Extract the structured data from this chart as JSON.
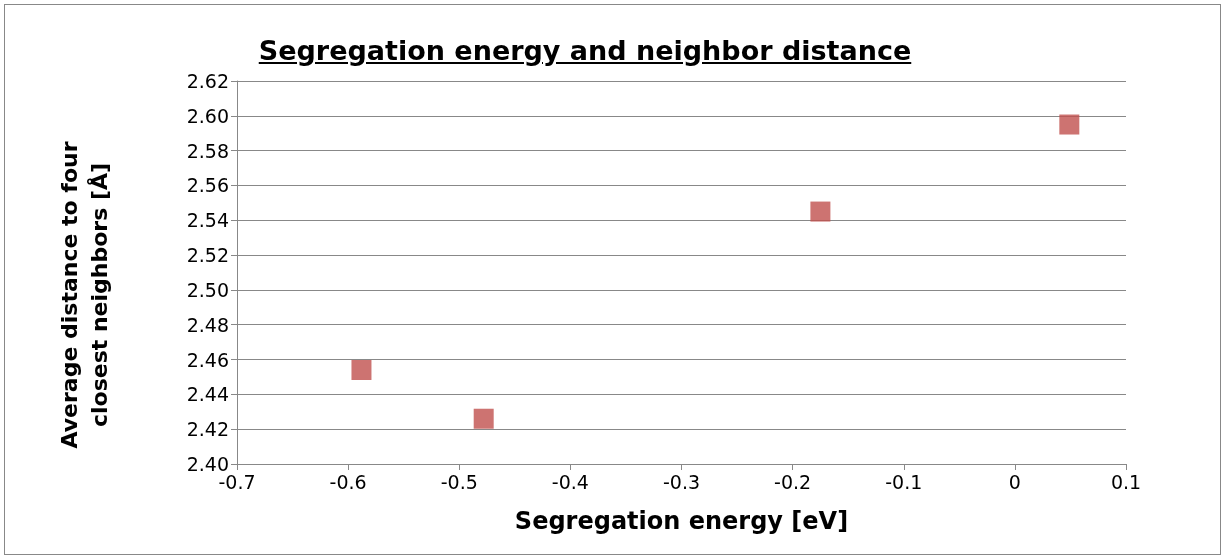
{
  "chart_data": {
    "type": "scatter",
    "title": "Segregation energy and neighbor distance",
    "xlabel": "Segregation energy [eV]",
    "ylabel": "Average distance to four closest neighbors [Å]",
    "x": [
      -0.588,
      -0.478,
      -0.175,
      0.049
    ],
    "series": [
      {
        "color": "#c0504d",
        "values": [
          2.454,
          2.426,
          2.545,
          2.595
        ]
      }
    ],
    "xlim": [
      -0.7,
      0.1
    ],
    "xticks": [
      -0.7,
      -0.6,
      -0.5,
      -0.4,
      -0.3,
      -0.2,
      -0.1,
      0,
      0.1
    ],
    "ylim": [
      2.4,
      2.62
    ],
    "yticks": [
      {
        "value": 2.4,
        "label": "2.40"
      },
      {
        "value": 2.42,
        "label": "2.42"
      },
      {
        "value": 2.44,
        "label": "2.44"
      },
      {
        "value": 2.46,
        "label": "2.46"
      },
      {
        "value": 2.48,
        "label": "2.48"
      },
      {
        "value": 2.5,
        "label": "2.50"
      },
      {
        "value": 2.52,
        "label": "2.52"
      },
      {
        "value": 2.54,
        "label": "2.54"
      },
      {
        "value": 2.56,
        "label": "2.56"
      },
      {
        "value": 2.58,
        "label": "2.58"
      },
      {
        "value": 2.6,
        "label": "2.60"
      },
      {
        "value": 2.62,
        "label": "2.62"
      }
    ],
    "grid": "y",
    "marker": "square"
  }
}
